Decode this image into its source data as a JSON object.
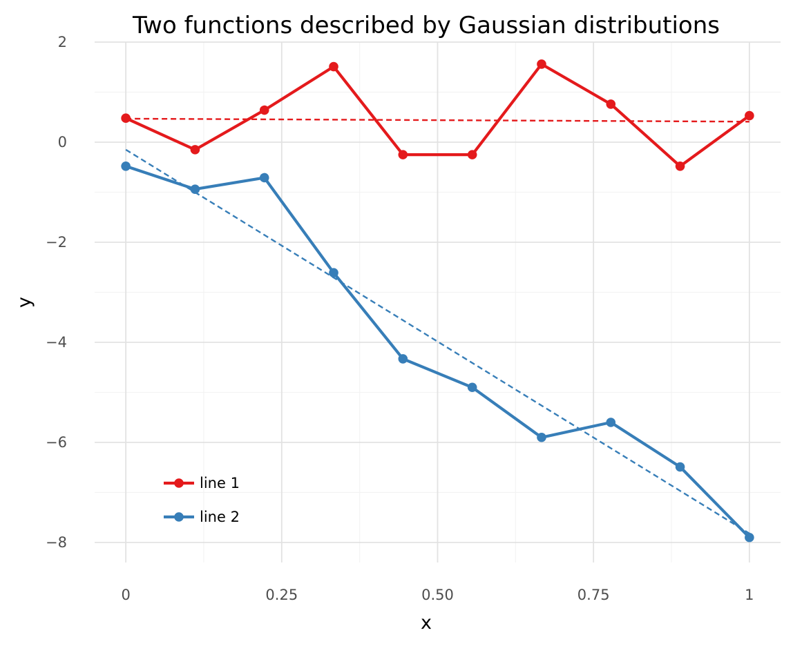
{
  "chart_data": {
    "type": "line",
    "title": "Two functions described by Gaussian distributions",
    "xlabel": "x",
    "ylabel": "y",
    "xlim": [
      -0.05,
      1.05
    ],
    "ylim": [
      -8.4,
      2.0
    ],
    "x_ticks": [
      0,
      0.25,
      0.5,
      0.75,
      1
    ],
    "x_tick_labels": [
      "0",
      "0.25",
      "0.50",
      "0.75",
      "1"
    ],
    "y_ticks": [
      2,
      0,
      -2,
      -4,
      -6,
      -8
    ],
    "y_tick_labels": [
      "2",
      "0",
      "−2",
      "−4",
      "−6",
      "−8"
    ],
    "x": [
      0,
      0.1111,
      0.2222,
      0.3333,
      0.4444,
      0.5556,
      0.6667,
      0.7778,
      0.8889,
      1
    ],
    "series": [
      {
        "name": "line 1",
        "color": "#e41a1c",
        "values": [
          0.48,
          -0.15,
          0.64,
          1.51,
          -0.25,
          -0.25,
          1.56,
          0.76,
          -0.48,
          0.53
        ],
        "trend": [
          0.47,
          0.41
        ]
      },
      {
        "name": "line 2",
        "color": "#377eb8",
        "values": [
          -0.48,
          -0.94,
          -0.71,
          -2.61,
          -4.33,
          -4.9,
          -5.9,
          -5.6,
          -6.49,
          -7.9
        ],
        "trend": [
          -0.15,
          -7.82
        ]
      }
    ],
    "grid": true,
    "legend_position": "bottom-left"
  }
}
